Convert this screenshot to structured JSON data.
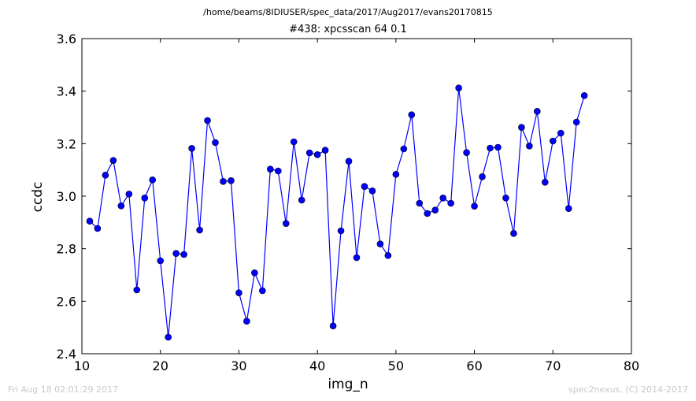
{
  "chart_data": {
    "type": "line",
    "suptitle": "/home/beams/8IDIUSER/spec_data/2017/Aug2017/evans20170815",
    "title": "#438: xpcsscan 64 0.1",
    "xlabel": "img_n",
    "ylabel": "ccdc",
    "xlim": [
      10,
      80
    ],
    "ylim": [
      2.4,
      3.6
    ],
    "xticks": [
      10,
      20,
      30,
      40,
      50,
      60,
      70,
      80
    ],
    "yticks": [
      2.4,
      2.6,
      2.8,
      3.0,
      3.2,
      3.4,
      3.6
    ],
    "xtick_labels": [
      "10",
      "20",
      "30",
      "40",
      "50",
      "60",
      "70",
      "80"
    ],
    "ytick_labels": [
      "2.4",
      "2.6",
      "2.8",
      "3.0",
      "3.2",
      "3.4",
      "3.6"
    ],
    "grid": false,
    "series": [
      {
        "color": "#0000ff",
        "x": [
          11,
          12,
          13,
          14,
          15,
          16,
          17,
          18,
          19,
          20,
          21,
          22,
          23,
          24,
          25,
          26,
          27,
          28,
          29,
          30,
          31,
          32,
          33,
          34,
          35,
          36,
          37,
          38,
          39,
          40,
          41,
          42,
          43,
          44,
          45,
          46,
          47,
          48,
          49,
          50,
          51,
          52,
          53,
          54,
          55,
          56,
          57,
          58,
          59,
          60,
          61,
          62,
          63,
          64,
          65,
          66,
          67,
          68,
          69,
          70,
          71,
          72,
          73,
          74
        ],
        "y": [
          2.905,
          2.877,
          3.08,
          3.136,
          2.963,
          3.008,
          2.643,
          2.993,
          3.062,
          2.754,
          2.463,
          2.782,
          2.778,
          3.182,
          2.871,
          3.288,
          3.204,
          3.056,
          3.059,
          2.632,
          2.524,
          2.708,
          2.64,
          3.103,
          3.096,
          2.896,
          3.207,
          2.985,
          3.165,
          3.158,
          3.175,
          2.506,
          2.868,
          3.133,
          2.766,
          3.037,
          3.02,
          2.818,
          2.774,
          3.083,
          3.18,
          3.31,
          2.973,
          2.934,
          2.947,
          2.993,
          2.973,
          3.412,
          3.166,
          2.962,
          3.074,
          3.183,
          3.186,
          2.993,
          2.858,
          3.262,
          3.191,
          3.323,
          3.053,
          3.21,
          3.24,
          2.953,
          3.282,
          3.383
        ]
      }
    ]
  },
  "footer": {
    "timestamp": "Fri Aug 18 02:01:29 2017",
    "credit": "spec2nexus, (C) 2014-2017"
  }
}
